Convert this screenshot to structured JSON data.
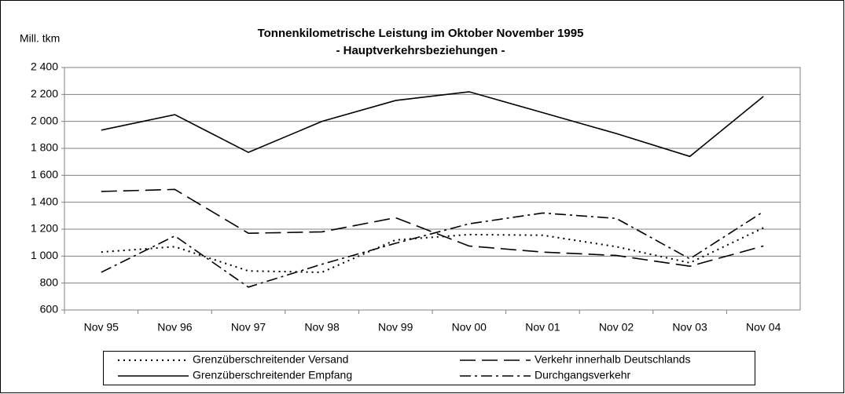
{
  "chart_data": {
    "type": "line",
    "title": "Tonnenkilometrische Leistung im Oktober November 1995",
    "subtitle": "- Hauptverkehrsbeziehungen -",
    "y_label": "Mill. tkm",
    "categories": [
      "Nov 95",
      "Nov 96",
      "Nov 97",
      "Nov 98",
      "Nov 99",
      "Nov 00",
      "Nov 01",
      "Nov 02",
      "Nov 03",
      "Nov 04"
    ],
    "series": [
      {
        "name": "Grenzüberschreitender Versand",
        "color": "#000000",
        "values": [
          1030,
          1070,
          890,
          880,
          1120,
          1160,
          1155,
          1070,
          950,
          1210
        ]
      },
      {
        "name": "Verkehr innerhalb Deutschlands",
        "color": "#000000",
        "values": [
          1480,
          1495,
          1170,
          1180,
          1285,
          1075,
          1030,
          1005,
          925,
          1075
        ]
      },
      {
        "name": "Grenzüberschreitender Empfang",
        "color": "#000000",
        "values": [
          1935,
          2050,
          1770,
          2000,
          2155,
          2220,
          2065,
          1910,
          1740,
          2185
        ]
      },
      {
        "name": "Durchgangsverkehr",
        "color": "#000000",
        "values": [
          880,
          1150,
          770,
          940,
          1095,
          1240,
          1320,
          1280,
          980,
          1330
        ]
      }
    ],
    "ylim": [
      600,
      2400
    ],
    "yticks": [
      600,
      800,
      {
        "value": 1000,
        "label": "1 000"
      },
      {
        "value": 1200,
        "label": "1 200"
      },
      {
        "value": 1400,
        "label": "1 400"
      },
      {
        "value": 1600,
        "label": "1 600"
      },
      {
        "value": 1800,
        "label": "1 800"
      },
      {
        "value": 2000,
        "label": "2 000"
      },
      {
        "value": 2200,
        "label": "2 200"
      },
      {
        "value": 2400,
        "label": "2 400"
      }
    ],
    "grid": true
  }
}
